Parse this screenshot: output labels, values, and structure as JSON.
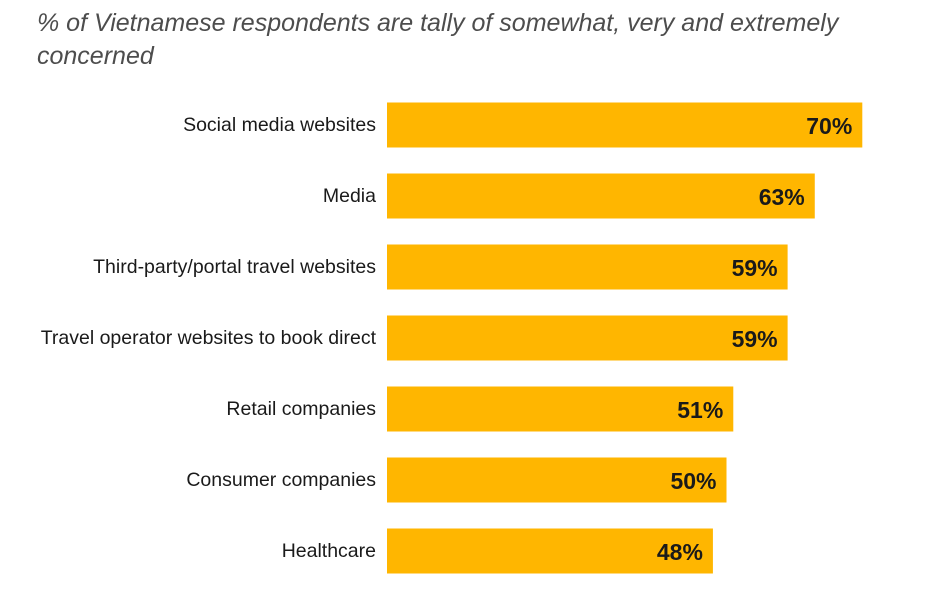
{
  "chart_data": {
    "type": "bar",
    "orientation": "horizontal",
    "title": "% of Vietnamese respondents are tally of somewhat, very and extremely concerned",
    "categories": [
      "Social media websites",
      "Media",
      "Third-party/portal travel websites",
      "Travel operator websites to book direct",
      "Retail companies",
      "Consumer companies",
      "Healthcare"
    ],
    "values": [
      70,
      63,
      59,
      59,
      51,
      50,
      48
    ],
    "value_labels": [
      "70%",
      "63%",
      "59%",
      "59%",
      "51%",
      "50%",
      "48%"
    ],
    "value_unit": "%",
    "xlim": [
      0,
      100
    ],
    "grid": false,
    "legend": "none",
    "bar_color": "#FFB600"
  }
}
